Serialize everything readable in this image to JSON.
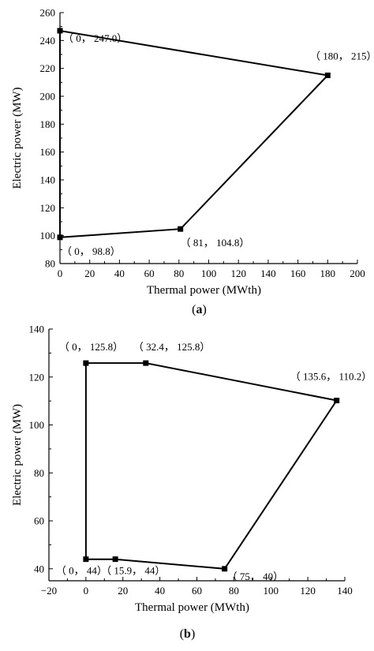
{
  "chart_data": [
    {
      "type": "line",
      "panel_label": "a",
      "xlabel": "Thermal power (MWth)",
      "ylabel": "Electric power (MW)",
      "xlim": [
        0,
        200
      ],
      "ylim": [
        80,
        260
      ],
      "xticks": [
        0,
        20,
        40,
        60,
        80,
        100,
        120,
        140,
        160,
        180,
        200
      ],
      "yticks": [
        80,
        100,
        120,
        140,
        160,
        180,
        200,
        220,
        240,
        260
      ],
      "grid": false,
      "series": [
        {
          "points": [
            {
              "x": 0,
              "y": 247.0,
              "label": "（ 0，  247.0）"
            },
            {
              "x": 180,
              "y": 215,
              "label": "（ 180，  215）"
            },
            {
              "x": 81,
              "y": 104.8,
              "label": "（ 81，  104.8）"
            },
            {
              "x": 0,
              "y": 98.8,
              "label": "（ 0，  98.8）"
            }
          ],
          "closed": true
        }
      ]
    },
    {
      "type": "line",
      "panel_label": "b",
      "xlabel": "Thermal power (MWth)",
      "ylabel": "Electric power (MW)",
      "xlim": [
        -20,
        140
      ],
      "ylim": [
        35,
        140
      ],
      "xticks": [
        -20,
        0,
        20,
        40,
        60,
        80,
        100,
        120,
        140
      ],
      "yticks": [
        40,
        60,
        80,
        100,
        120,
        140
      ],
      "grid": false,
      "series": [
        {
          "points": [
            {
              "x": 0,
              "y": 125.8,
              "label": "（ 0，  125.8）"
            },
            {
              "x": 32.4,
              "y": 125.8,
              "label": "（ 32.4，  125.8）"
            },
            {
              "x": 135.6,
              "y": 110.2,
              "label": "（ 135.6，  110.2）"
            },
            {
              "x": 75,
              "y": 40,
              "label": "（ 75，  40）"
            },
            {
              "x": 15.9,
              "y": 44,
              "label": "（ 15.9，  44）"
            },
            {
              "x": 0,
              "y": 44,
              "label": "（ 0，  44）"
            }
          ],
          "closed": true
        }
      ]
    }
  ]
}
